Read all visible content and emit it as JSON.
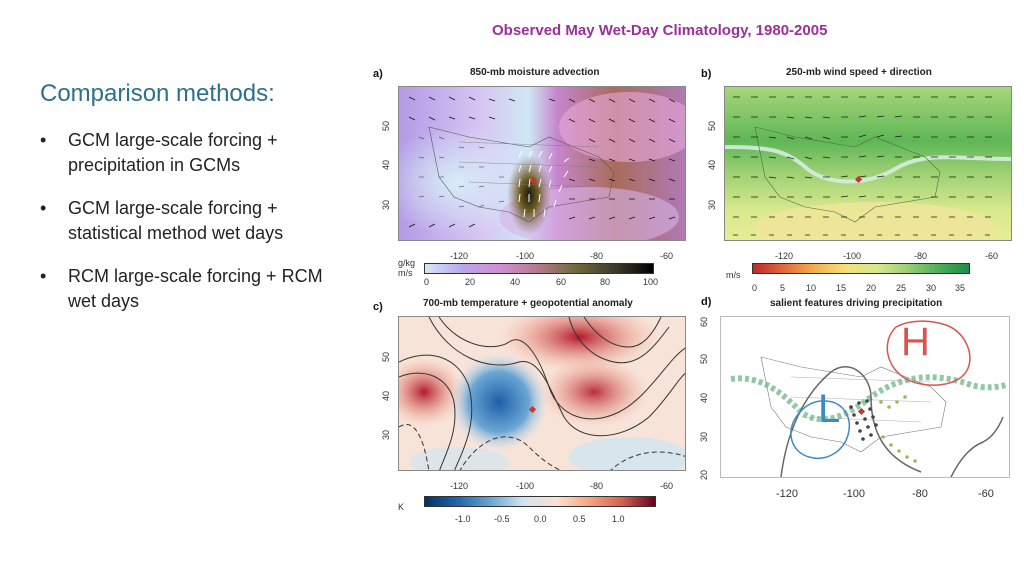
{
  "slide": {
    "title": "Observed May Wet-Day Climatology, 1980-2005"
  },
  "methods": {
    "heading": "Comparison methods:",
    "bullet_char": "•",
    "items": [
      "GCM large-scale forcing + precipitation in GCMs",
      "GCM large-scale forcing + statistical method wet days",
      "RCM large-scale forcing + RCM wet days"
    ]
  },
  "panels": {
    "a": {
      "label": "a)",
      "title": "850-mb moisture advection",
      "lat_ticks": [
        "50",
        "40",
        "30"
      ],
      "lon_ticks": [
        "-120",
        "-100",
        "-80",
        "-60"
      ],
      "colorbar": {
        "unit_line1": "g/kg",
        "unit_line2": "m/s",
        "ticks": [
          "0",
          "20",
          "40",
          "60",
          "80",
          "100"
        ]
      }
    },
    "b": {
      "label": "b)",
      "title": "250-mb wind speed + direction",
      "lat_ticks": [
        "50",
        "40",
        "30"
      ],
      "lon_ticks": [
        "-120",
        "-100",
        "-80",
        "-60"
      ],
      "colorbar": {
        "unit": "m/s",
        "ticks": [
          "0",
          "5",
          "10",
          "15",
          "20",
          "25",
          "30",
          "35"
        ]
      }
    },
    "c": {
      "label": "c)",
      "title": "700-mb temperature + geopotential anomaly",
      "lat_ticks": [
        "50",
        "40",
        "30"
      ],
      "lon_ticks": [
        "-120",
        "-100",
        "-80",
        "-60"
      ],
      "colorbar": {
        "unit": "K",
        "ticks": [
          "-1.0",
          "-0.5",
          "0.0",
          "0.5",
          "1.0"
        ]
      }
    },
    "d": {
      "label": "d)",
      "title": "salient features driving precipitation",
      "lat_ticks": [
        "60",
        "50",
        "40",
        "30",
        "20"
      ],
      "lon_ticks": [
        "-120",
        "-100",
        "-80",
        "-60"
      ],
      "high_label": "H",
      "low_label": "L"
    }
  },
  "colors": {
    "title": "#9b2f9b",
    "heading": "#2e6f8e",
    "high": "#d9534f",
    "low": "#3b8cc4",
    "jet": "#6fb58a",
    "marker": "#c0392b"
  }
}
